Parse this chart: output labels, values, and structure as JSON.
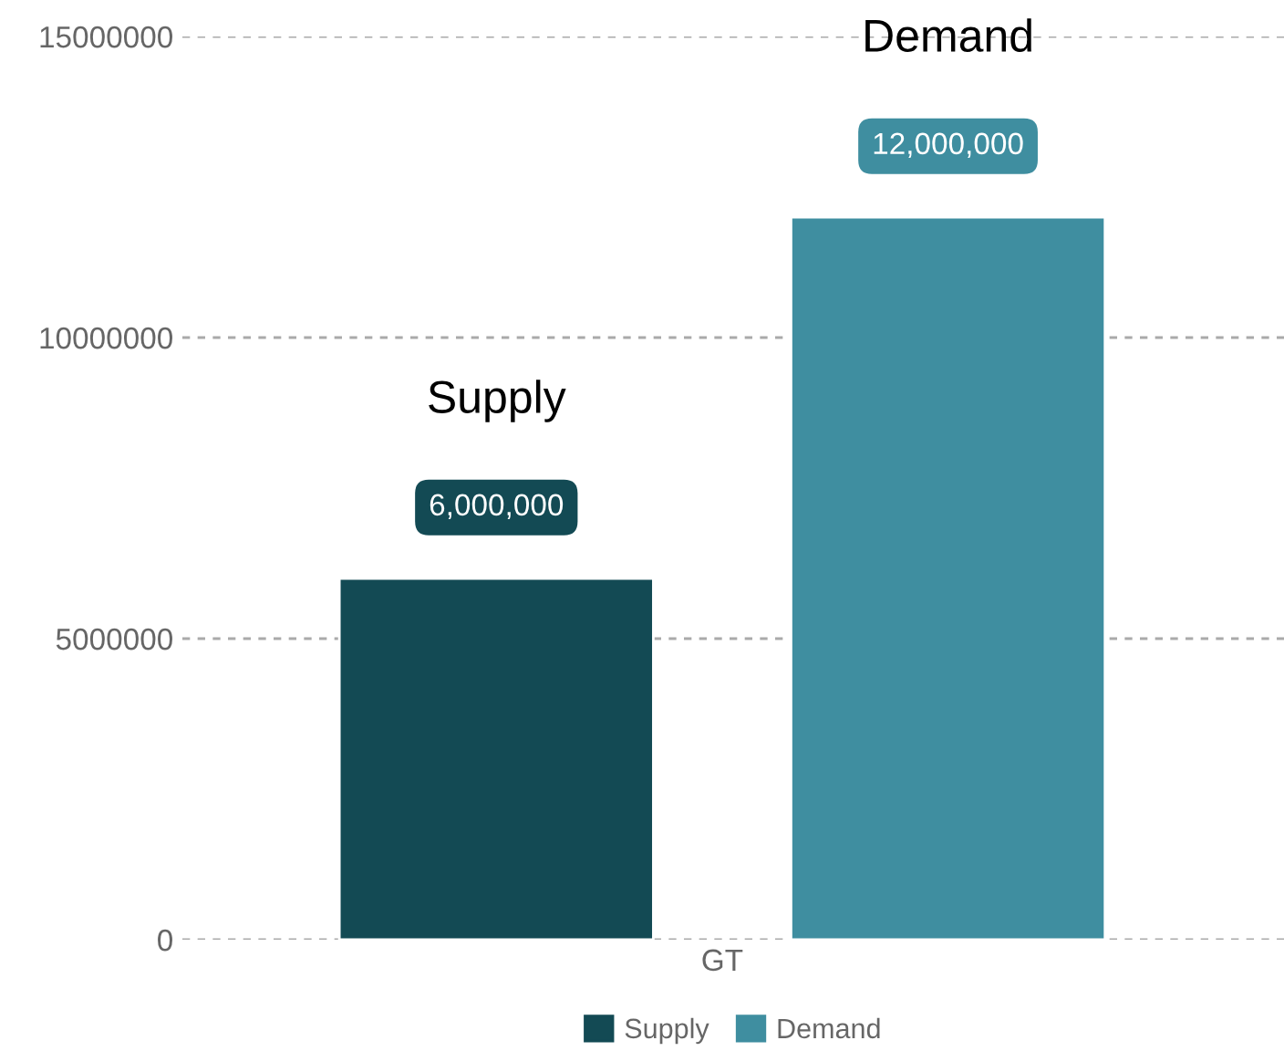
{
  "chart_data": {
    "type": "bar",
    "categories": [
      "GT"
    ],
    "series": [
      {
        "name": "Supply",
        "color": "#134a54",
        "values": [
          6000000
        ],
        "value_labels": [
          "6,000,000"
        ]
      },
      {
        "name": "Demand",
        "color": "#3f8ea0",
        "values": [
          12000000
        ],
        "value_labels": [
          "12,000,000"
        ]
      }
    ],
    "ylim": [
      0,
      15000000
    ],
    "yticks": [
      0,
      5000000,
      10000000,
      15000000
    ],
    "grid": "y",
    "legend": "bottom"
  }
}
